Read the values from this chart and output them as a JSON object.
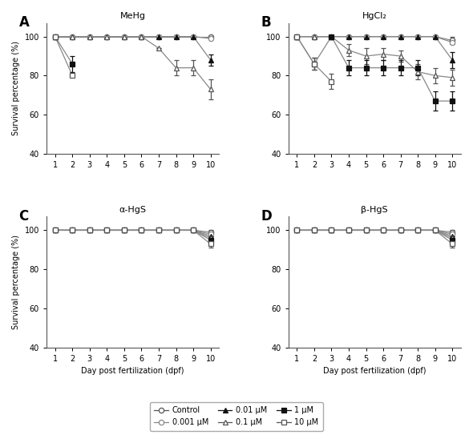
{
  "days": [
    1,
    2,
    3,
    4,
    5,
    6,
    7,
    8,
    9,
    10
  ],
  "panels": {
    "A": {
      "title": "MeHg",
      "series": {
        "control": {
          "y": [
            100,
            100,
            100,
            100,
            100,
            100,
            100,
            100,
            100,
            100
          ],
          "yerr": [
            0,
            0,
            0,
            0,
            0,
            0,
            0,
            0,
            0,
            0
          ]
        },
        "0.001": {
          "y": [
            100,
            100,
            100,
            100,
            100,
            100,
            100,
            100,
            100,
            99
          ],
          "yerr": [
            0,
            0,
            0,
            0,
            0,
            0,
            0,
            0,
            0,
            0
          ]
        },
        "0.01": {
          "y": [
            100,
            100,
            100,
            100,
            100,
            100,
            100,
            100,
            100,
            88
          ],
          "yerr": [
            0,
            0,
            0,
            0,
            0,
            0,
            0,
            0,
            0,
            3
          ]
        },
        "0.1": {
          "y": [
            100,
            100,
            100,
            100,
            100,
            100,
            94,
            84,
            84,
            73
          ],
          "yerr": [
            0,
            0,
            0,
            0,
            0,
            0,
            0,
            4,
            4,
            5
          ]
        },
        "1": {
          "y": [
            100,
            86,
            null,
            null,
            null,
            null,
            null,
            null,
            null,
            null
          ],
          "yerr": [
            0,
            4,
            0,
            0,
            0,
            0,
            0,
            0,
            0,
            0
          ]
        },
        "10": {
          "y": [
            100,
            80,
            null,
            null,
            null,
            null,
            null,
            null,
            null,
            null
          ],
          "yerr": [
            0,
            0,
            0,
            0,
            0,
            0,
            0,
            0,
            0,
            0
          ]
        }
      }
    },
    "B": {
      "title": "HgCl₂",
      "series": {
        "control": {
          "y": [
            100,
            100,
            100,
            100,
            100,
            100,
            100,
            100,
            100,
            98
          ],
          "yerr": [
            0,
            0,
            0,
            0,
            0,
            0,
            0,
            0,
            0,
            2
          ]
        },
        "0.001": {
          "y": [
            100,
            100,
            100,
            100,
            100,
            100,
            100,
            100,
            100,
            97
          ],
          "yerr": [
            0,
            0,
            0,
            0,
            0,
            0,
            0,
            0,
            0,
            1
          ]
        },
        "0.01": {
          "y": [
            100,
            100,
            100,
            100,
            100,
            100,
            100,
            100,
            100,
            88
          ],
          "yerr": [
            0,
            0,
            0,
            0,
            0,
            0,
            0,
            0,
            0,
            4
          ]
        },
        "0.1": {
          "y": [
            100,
            100,
            100,
            93,
            90,
            91,
            90,
            82,
            80,
            79
          ],
          "yerr": [
            0,
            0,
            0,
            3,
            4,
            3,
            3,
            4,
            4,
            4
          ]
        },
        "1": {
          "y": [
            100,
            86,
            100,
            84,
            84,
            84,
            84,
            84,
            67,
            67
          ],
          "yerr": [
            0,
            3,
            0,
            4,
            4,
            4,
            4,
            4,
            5,
            5
          ]
        },
        "10": {
          "y": [
            100,
            86,
            77,
            null,
            null,
            null,
            null,
            null,
            null,
            null
          ],
          "yerr": [
            0,
            3,
            4,
            0,
            0,
            0,
            0,
            0,
            0,
            0
          ]
        }
      }
    },
    "C": {
      "title": "α-HgS",
      "series": {
        "control": {
          "y": [
            100,
            100,
            100,
            100,
            100,
            100,
            100,
            100,
            100,
            99
          ],
          "yerr": [
            0,
            0,
            0,
            0,
            0,
            0,
            0,
            0,
            0,
            1
          ]
        },
        "0.001": {
          "y": [
            100,
            100,
            100,
            100,
            100,
            100,
            100,
            100,
            100,
            98
          ],
          "yerr": [
            0,
            0,
            0,
            0,
            0,
            0,
            0,
            0,
            0,
            1
          ]
        },
        "0.01": {
          "y": [
            100,
            100,
            100,
            100,
            100,
            100,
            100,
            100,
            100,
            97
          ],
          "yerr": [
            0,
            0,
            0,
            0,
            0,
            0,
            0,
            0,
            0,
            1
          ]
        },
        "0.1": {
          "y": [
            100,
            100,
            100,
            100,
            100,
            100,
            100,
            100,
            100,
            96
          ],
          "yerr": [
            0,
            0,
            0,
            0,
            0,
            0,
            0,
            0,
            0,
            1
          ]
        },
        "1": {
          "y": [
            100,
            100,
            100,
            100,
            100,
            100,
            100,
            100,
            100,
            95
          ],
          "yerr": [
            0,
            0,
            0,
            0,
            0,
            0,
            0,
            0,
            0,
            2
          ]
        },
        "10": {
          "y": [
            100,
            100,
            100,
            100,
            100,
            100,
            100,
            100,
            100,
            93
          ],
          "yerr": [
            0,
            0,
            0,
            0,
            0,
            0,
            0,
            0,
            0,
            2
          ]
        }
      }
    },
    "D": {
      "title": "β-HgS",
      "series": {
        "control": {
          "y": [
            100,
            100,
            100,
            100,
            100,
            100,
            100,
            100,
            100,
            99
          ],
          "yerr": [
            0,
            0,
            0,
            0,
            0,
            0,
            0,
            0,
            0,
            1
          ]
        },
        "0.001": {
          "y": [
            100,
            100,
            100,
            100,
            100,
            100,
            100,
            100,
            100,
            98
          ],
          "yerr": [
            0,
            0,
            0,
            0,
            0,
            0,
            0,
            0,
            0,
            1
          ]
        },
        "0.01": {
          "y": [
            100,
            100,
            100,
            100,
            100,
            100,
            100,
            100,
            100,
            97
          ],
          "yerr": [
            0,
            0,
            0,
            0,
            0,
            0,
            0,
            0,
            0,
            1
          ]
        },
        "0.1": {
          "y": [
            100,
            100,
            100,
            100,
            100,
            100,
            100,
            100,
            100,
            96
          ],
          "yerr": [
            0,
            0,
            0,
            0,
            0,
            0,
            0,
            0,
            0,
            1
          ]
        },
        "1": {
          "y": [
            100,
            100,
            100,
            100,
            100,
            100,
            100,
            100,
            100,
            95
          ],
          "yerr": [
            0,
            0,
            0,
            0,
            0,
            0,
            0,
            0,
            0,
            2
          ]
        },
        "10": {
          "y": [
            100,
            100,
            100,
            100,
            100,
            100,
            100,
            100,
            100,
            93
          ],
          "yerr": [
            0,
            0,
            0,
            0,
            0,
            0,
            0,
            0,
            0,
            2
          ]
        }
      }
    }
  },
  "series_styles": {
    "control": {
      "label": "Control",
      "marker": "o",
      "filled": false,
      "color": "#555555"
    },
    "0.001": {
      "label": "0.001 μM",
      "marker": "o",
      "filled": false,
      "color": "#888888"
    },
    "0.01": {
      "label": "0.01 μM",
      "marker": "^",
      "filled": true,
      "color": "#111111"
    },
    "0.1": {
      "label": "0.1 μM",
      "marker": "^",
      "filled": false,
      "color": "#555555"
    },
    "1": {
      "label": "1 μM",
      "marker": "s",
      "filled": true,
      "color": "#111111"
    },
    "10": {
      "label": "10 μM",
      "marker": "s",
      "filled": false,
      "color": "#555555"
    }
  },
  "ylabel": "Survival percentage (%)",
  "xlabel": "Day post fertilization (dpf)",
  "ylim": [
    40,
    107
  ],
  "yticks": [
    40,
    60,
    80,
    100
  ],
  "xticks": [
    1,
    2,
    3,
    4,
    5,
    6,
    7,
    8,
    9,
    10
  ],
  "panel_labels": [
    "A",
    "B",
    "C",
    "D"
  ],
  "bg_color": "#ffffff",
  "line_color": "#888888"
}
